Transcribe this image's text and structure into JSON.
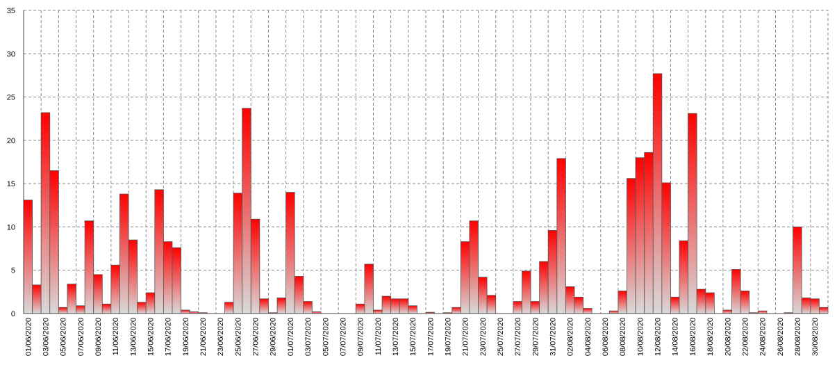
{
  "chart_data": {
    "type": "bar",
    "categories": [
      "01/06/2020",
      null,
      "03/06/2020",
      null,
      "05/06/2020",
      null,
      "07/06/2020",
      null,
      "09/06/2020",
      null,
      "11/06/2020",
      null,
      "13/06/2020",
      null,
      "15/06/2020",
      null,
      "17/06/2020",
      null,
      "19/06/2020",
      null,
      "21/06/2020",
      null,
      "23/06/2020",
      null,
      "25/06/2020",
      null,
      "27/06/2020",
      null,
      "29/06/2020",
      null,
      "01/07/2020",
      null,
      "03/07/2020",
      null,
      "05/07/2020",
      null,
      "07/07/2020",
      null,
      "09/07/2020",
      null,
      "11/07/2020",
      null,
      "13/07/2020",
      null,
      "15/07/2020",
      null,
      "17/07/2020",
      null,
      "19/07/2020",
      null,
      "21/07/2020",
      null,
      "23/07/2020",
      null,
      "25/07/2020",
      null,
      "27/07/2020",
      null,
      "29/07/2020",
      null,
      "31/07/2020",
      null,
      "02/08/2020",
      null,
      "04/08/2020",
      null,
      "06/08/2020",
      null,
      "08/08/2020",
      null,
      "10/08/2020",
      null,
      "12/08/2020",
      null,
      "14/08/2020",
      null,
      "16/08/2020",
      null,
      "18/08/2020",
      null,
      "20/08/2020",
      null,
      "22/08/2020",
      null,
      "24/08/2020",
      null,
      "26/08/2020",
      null,
      "28/08/2020",
      null,
      "30/08/2020",
      null
    ],
    "values": [
      13.1,
      3.3,
      23.2,
      16.5,
      0.7,
      3.4,
      0.9,
      10.7,
      4.5,
      1.1,
      5.6,
      13.8,
      8.5,
      1.3,
      2.4,
      14.3,
      8.3,
      7.6,
      0.4,
      0.2,
      0.1,
      0,
      0,
      1.3,
      13.9,
      23.7,
      10.9,
      1.7,
      0.1,
      1.8,
      14.0,
      4.3,
      1.4,
      0.2,
      0,
      0,
      0,
      0,
      1.1,
      5.7,
      0.4,
      2.0,
      1.7,
      1.7,
      0.9,
      0,
      0.15,
      0,
      0.1,
      0.7,
      8.3,
      10.7,
      4.2,
      2.1,
      0,
      0,
      1.4,
      4.9,
      1.4,
      6.0,
      9.6,
      17.9,
      3.1,
      1.9,
      0.6,
      0,
      0,
      0.3,
      2.6,
      15.6,
      18.0,
      18.6,
      27.7,
      15.1,
      1.9,
      8.4,
      23.1,
      2.8,
      2.4,
      0,
      0.4,
      5.1,
      2.6,
      0.1,
      0.3,
      0,
      0,
      0.1,
      10.0,
      1.8,
      1.7,
      0.7
    ],
    "color": "#ff0000",
    "ylim": [
      0,
      35
    ],
    "yticks": [
      0,
      5,
      10,
      15,
      20,
      25,
      30,
      35
    ],
    "grid": true
  }
}
